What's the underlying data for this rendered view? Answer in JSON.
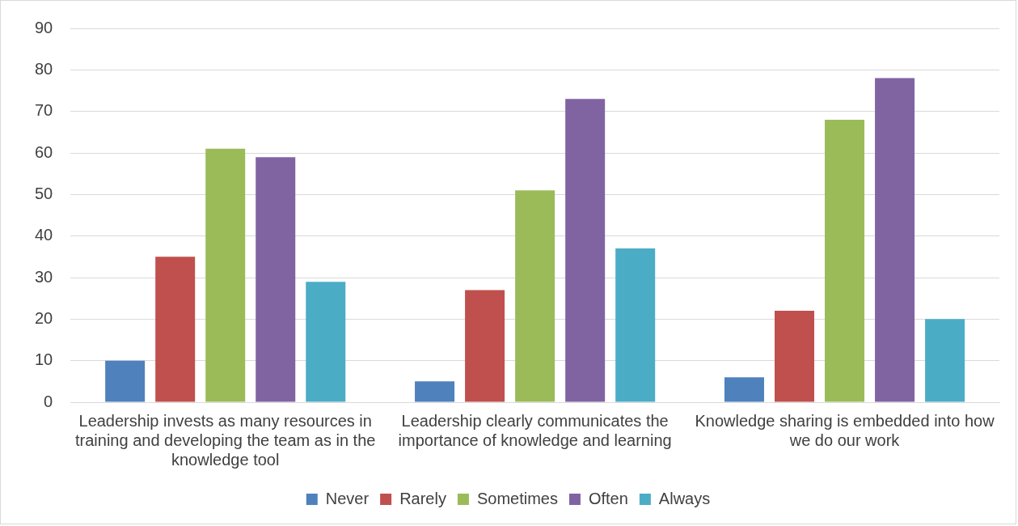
{
  "chart_data": {
    "type": "bar",
    "categories": [
      "Leadership invests as many resources in training and developing the team as in the knowledge tool",
      "Leadership clearly communicates the importance of knowledge and learning",
      "Knowledge sharing is embedded into how we do our work"
    ],
    "series": [
      {
        "name": "Never",
        "color": "#4f81bd",
        "values": [
          10,
          5,
          6
        ]
      },
      {
        "name": "Rarely",
        "color": "#c0504d",
        "values": [
          35,
          27,
          22
        ]
      },
      {
        "name": "Sometimes",
        "color": "#9bbb59",
        "values": [
          61,
          51,
          68
        ]
      },
      {
        "name": "Often",
        "color": "#8064a2",
        "values": [
          59,
          73,
          78
        ]
      },
      {
        "name": "Always",
        "color": "#4bacc6",
        "values": [
          29,
          37,
          20
        ]
      }
    ],
    "ylim": [
      0,
      90
    ],
    "yticks": [
      0,
      10,
      20,
      30,
      40,
      50,
      60,
      70,
      80,
      90
    ],
    "grid": "y",
    "legend": "bottom"
  }
}
